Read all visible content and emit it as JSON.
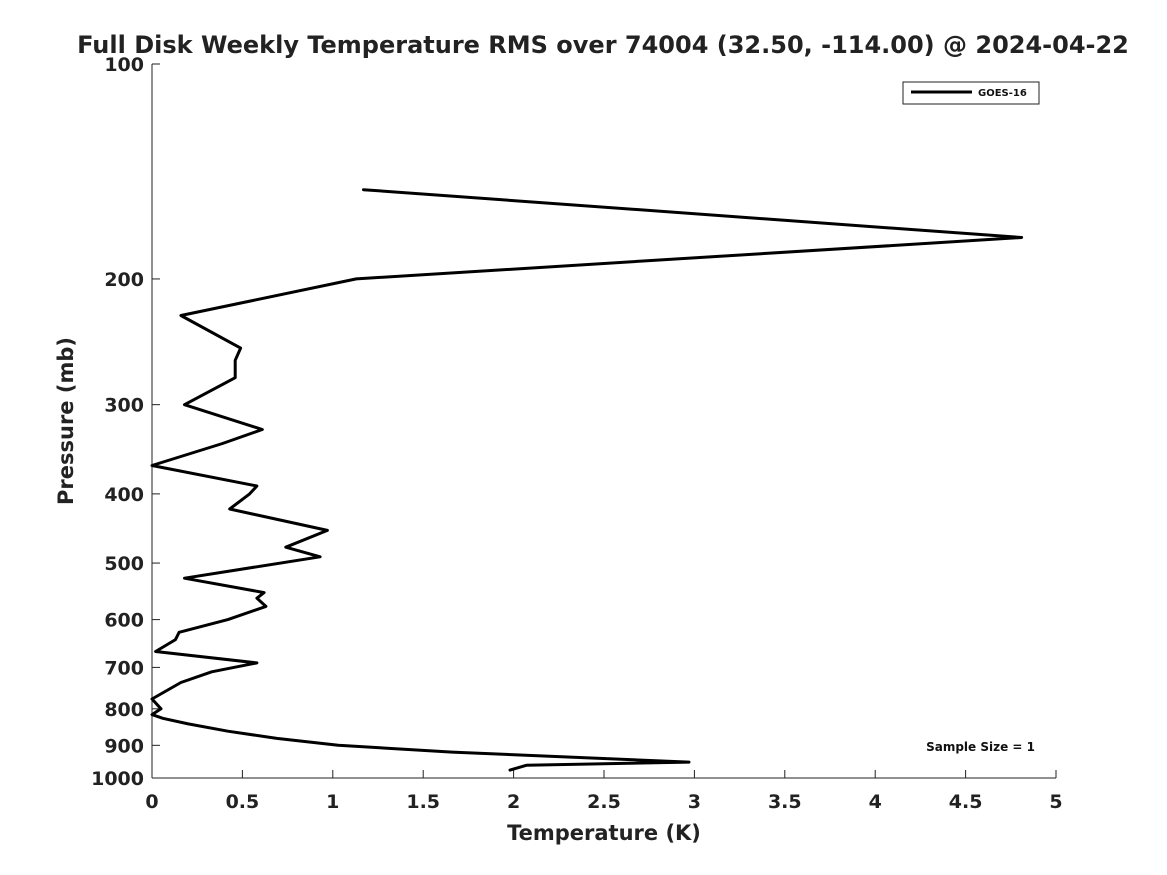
{
  "chart_data": {
    "type": "line",
    "title": "Full Disk Weekly Temperature RMS over 74004 (32.50, -114.00) @ 2024-04-22",
    "xlabel": "Temperature (K)",
    "ylabel": "Pressure (mb)",
    "xlim": [
      0,
      5
    ],
    "ylim": [
      1000,
      100
    ],
    "yscale": "log",
    "y_inverted": true,
    "grid": false,
    "x_ticks": [
      0,
      0.5,
      1,
      1.5,
      2,
      2.5,
      3,
      3.5,
      4,
      4.5,
      5
    ],
    "x_tick_labels": [
      "0",
      "0.5",
      "1",
      "1.5",
      "2",
      "2.5",
      "3",
      "3.5",
      "4",
      "4.5",
      "5"
    ],
    "y_ticks": [
      100,
      200,
      300,
      400,
      500,
      600,
      700,
      800,
      900,
      1000
    ],
    "y_tick_labels": [
      "100",
      "200",
      "300",
      "400",
      "500",
      "600",
      "700",
      "800",
      "900",
      "1000"
    ],
    "legend": {
      "position": "top-right",
      "entries": [
        "GOES-16"
      ]
    },
    "annotation": "Sample Size = 1",
    "series": [
      {
        "name": "GOES-16",
        "color": "#000000",
        "points": [
          {
            "t": 1.17,
            "p": 150
          },
          {
            "t": 4.81,
            "p": 175
          },
          {
            "t": 1.13,
            "p": 200
          },
          {
            "t": 0.16,
            "p": 225
          },
          {
            "t": 0.49,
            "p": 250
          },
          {
            "t": 0.46,
            "p": 260
          },
          {
            "t": 0.46,
            "p": 275
          },
          {
            "t": 0.18,
            "p": 300
          },
          {
            "t": 0.61,
            "p": 325
          },
          {
            "t": 0.39,
            "p": 340
          },
          {
            "t": 0.0,
            "p": 365
          },
          {
            "t": 0.58,
            "p": 390
          },
          {
            "t": 0.54,
            "p": 400
          },
          {
            "t": 0.43,
            "p": 420
          },
          {
            "t": 0.97,
            "p": 450
          },
          {
            "t": 0.74,
            "p": 475
          },
          {
            "t": 0.93,
            "p": 490
          },
          {
            "t": 0.18,
            "p": 525
          },
          {
            "t": 0.62,
            "p": 550
          },
          {
            "t": 0.58,
            "p": 560
          },
          {
            "t": 0.63,
            "p": 575
          },
          {
            "t": 0.42,
            "p": 600
          },
          {
            "t": 0.15,
            "p": 625
          },
          {
            "t": 0.13,
            "p": 640
          },
          {
            "t": 0.02,
            "p": 665
          },
          {
            "t": 0.58,
            "p": 690
          },
          {
            "t": 0.33,
            "p": 710
          },
          {
            "t": 0.16,
            "p": 735
          },
          {
            "t": 0.0,
            "p": 775
          },
          {
            "t": 0.05,
            "p": 800
          },
          {
            "t": 0.0,
            "p": 815
          },
          {
            "t": 0.06,
            "p": 825
          },
          {
            "t": 0.2,
            "p": 840
          },
          {
            "t": 0.42,
            "p": 860
          },
          {
            "t": 0.69,
            "p": 880
          },
          {
            "t": 1.03,
            "p": 900
          },
          {
            "t": 1.66,
            "p": 920
          },
          {
            "t": 2.97,
            "p": 950
          },
          {
            "t": 2.07,
            "p": 960
          },
          {
            "t": 1.98,
            "p": 975
          }
        ]
      }
    ]
  }
}
